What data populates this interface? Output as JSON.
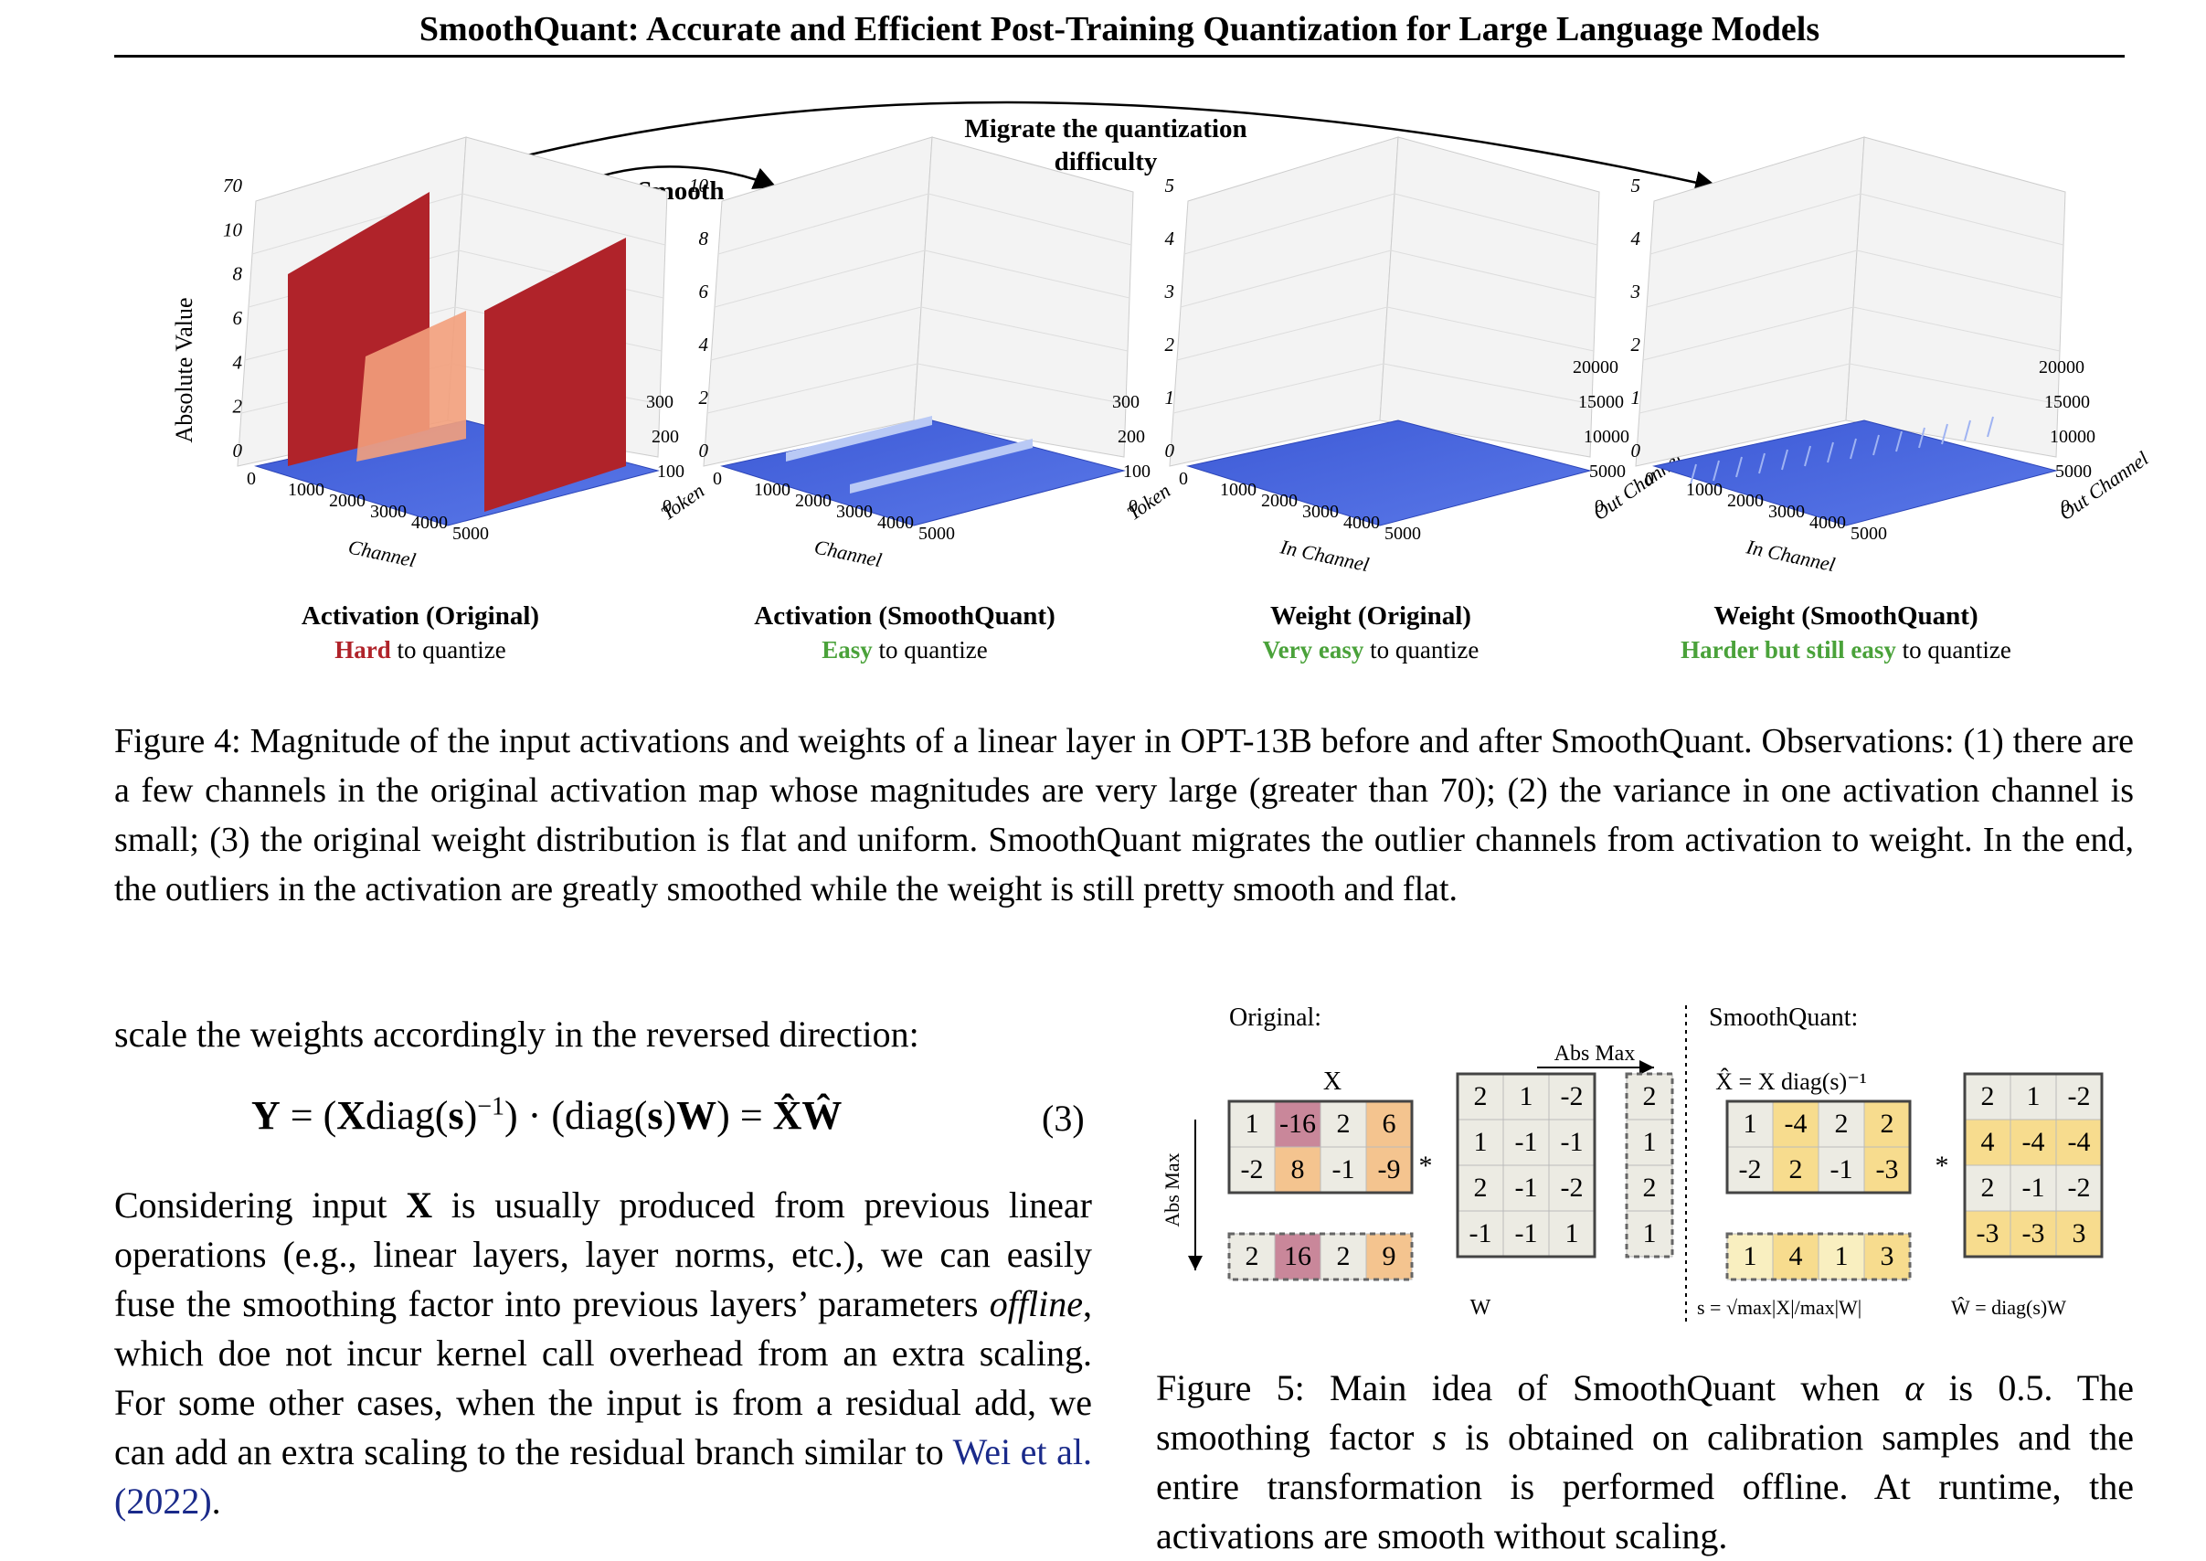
{
  "header": {
    "title": "SmoothQuant: Accurate and Efficient Post-Training Quantization for Large Language Models"
  },
  "figure4": {
    "arrow_labels": {
      "smooth": "Smooth",
      "migrate_line1": "Migrate the quantization",
      "migrate_line2": "difficulty"
    },
    "y_axis_label": "Absolute Value",
    "panels": [
      {
        "title": "Activation (Original)",
        "highlight": "Hard",
        "rest": " to quantize",
        "z_ticks": [
          "0",
          "2",
          "4",
          "6",
          "8",
          "10",
          "70"
        ],
        "x_ticks": [
          "0",
          "1000",
          "2000",
          "3000",
          "4000",
          "5000"
        ],
        "x_label": "Channel",
        "y_ticks": [
          "0",
          "100",
          "200",
          "300"
        ],
        "y_label": "Token"
      },
      {
        "title": "Activation (SmoothQuant)",
        "highlight": "Easy",
        "rest": " to quantize",
        "z_ticks": [
          "0",
          "2",
          "4",
          "6",
          "8",
          "10"
        ],
        "x_ticks": [
          "0",
          "1000",
          "2000",
          "3000",
          "4000",
          "5000"
        ],
        "x_label": "Channel",
        "y_ticks": [
          "0",
          "100",
          "200",
          "300"
        ],
        "y_label": "Token"
      },
      {
        "title": "Weight (Original)",
        "highlight": "Very easy",
        "rest": " to quantize",
        "z_ticks": [
          "0",
          "1",
          "2",
          "3",
          "4",
          "5"
        ],
        "x_ticks": [
          "0",
          "1000",
          "2000",
          "3000",
          "4000",
          "5000"
        ],
        "x_label": "In Channel",
        "y_ticks": [
          "0",
          "5000",
          "10000",
          "15000",
          "20000"
        ],
        "y_label": "Out Channel"
      },
      {
        "title": "Weight (SmoothQuant)",
        "highlight": "Harder but still easy",
        "rest": " to quantize",
        "z_ticks": [
          "0",
          "1",
          "2",
          "3",
          "4",
          "5"
        ],
        "x_ticks": [
          "0",
          "1000",
          "2000",
          "3000",
          "4000",
          "5000"
        ],
        "x_label": "In Channel",
        "y_ticks": [
          "0",
          "5000",
          "10000",
          "15000",
          "20000"
        ],
        "y_label": "Out Channel"
      }
    ],
    "caption": "Figure 4: Magnitude of the input activations and weights of a linear layer in OPT-13B before and after SmoothQuant. Observations: (1) there are a few channels in the original activation map whose magnitudes are very large (greater than 70); (2) the variance in one activation channel is small; (3) the original weight distribution is flat and uniform. SmoothQuant migrates the outlier channels from activation to weight. In the end, the outliers in the activation are greatly smoothed while the weight is still pretty smooth and flat."
  },
  "body": {
    "intro": "scale the weights accordingly in the reversed direction:",
    "equation_number": "(3)",
    "para_pre": "Considering input ",
    "para_x": "X",
    "para_mid": " is usually produced from previous linear operations (e.g., linear layers, layer norms, etc.), we can easily fuse the smoothing factor into previous layers’ parameters ",
    "para_offline": "offline",
    "para_post": ", which doe not incur kernel call overhead from an extra scaling. For some other cases, when the input is from a residual add, we can add an extra scaling to the residual branch similar to ",
    "citation": "Wei et al. (2022)",
    "para_end": "."
  },
  "figure5": {
    "original_label": "Original:",
    "smoothquant_label": "SmoothQuant:",
    "abs_max_top": "Abs Max",
    "abs_max_side": "Abs Max",
    "x_label": "X",
    "w_label": "W",
    "xhat_label": "X̂ = X diag(s)⁻¹",
    "s_formula": "s = √max|X|/max|W|",
    "what_formula": "Ŵ = diag(s)W",
    "star": "*",
    "X": [
      [
        "1",
        "-16",
        "2",
        "6"
      ],
      [
        "-2",
        "8",
        "-1",
        "-9"
      ]
    ],
    "X_absmax": [
      "2",
      "16",
      "2",
      "9"
    ],
    "W": [
      [
        "2",
        "1",
        "-2"
      ],
      [
        "1",
        "-1",
        "-1"
      ],
      [
        "2",
        "-1",
        "-2"
      ],
      [
        "-1",
        "-1",
        "1"
      ]
    ],
    "W_absmax": [
      "2",
      "1",
      "2",
      "1"
    ],
    "Xhat": [
      [
        "1",
        "-4",
        "2",
        "2"
      ],
      [
        "-2",
        "2",
        "-1",
        "-3"
      ]
    ],
    "s": [
      "1",
      "4",
      "1",
      "3"
    ],
    "What": [
      [
        "2",
        "1",
        "-2"
      ],
      [
        "4",
        "-4",
        "-4"
      ],
      [
        "2",
        "-1",
        "-2"
      ],
      [
        "-3",
        "-3",
        "3"
      ]
    ],
    "colors": {
      "hard": "#b0232a",
      "easy": "#4aa23a",
      "cite": "#1a2a8a"
    },
    "caption_pre": "Figure 5: Main idea of SmoothQuant when ",
    "caption_alpha": "α",
    "caption_mid": " is ",
    "caption_val": "0.5",
    "caption_post": ". The smoothing factor ",
    "caption_s": "s",
    "caption_end": " is obtained on calibration samples and the entire transformation is performed offline. At runtime, the activations are smooth without scaling."
  }
}
